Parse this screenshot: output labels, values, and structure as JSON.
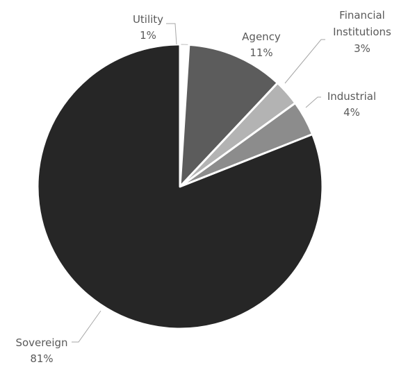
{
  "chart_data": {
    "type": "pie",
    "title": "",
    "start_angle_deg": 0,
    "direction": "clockwise",
    "slice_border_color": "#ffffff",
    "slices": [
      {
        "label": "Utility",
        "value": 1,
        "pct_label": "1%",
        "color": "#ffffff",
        "edge": "#bfbfbf"
      },
      {
        "label": "Agency",
        "value": 11,
        "pct_label": "11%",
        "color": "#5c5c5c"
      },
      {
        "label": "Financial Institutions",
        "label_lines": [
          "Financial",
          "Institutions"
        ],
        "value": 3,
        "pct_label": "3%",
        "color": "#b3b3b3"
      },
      {
        "label": "Industrial",
        "value": 4,
        "pct_label": "4%",
        "color": "#8c8c8c"
      },
      {
        "label": "Sovereign",
        "value": 81,
        "pct_label": "81%",
        "color": "#262626"
      }
    ]
  }
}
